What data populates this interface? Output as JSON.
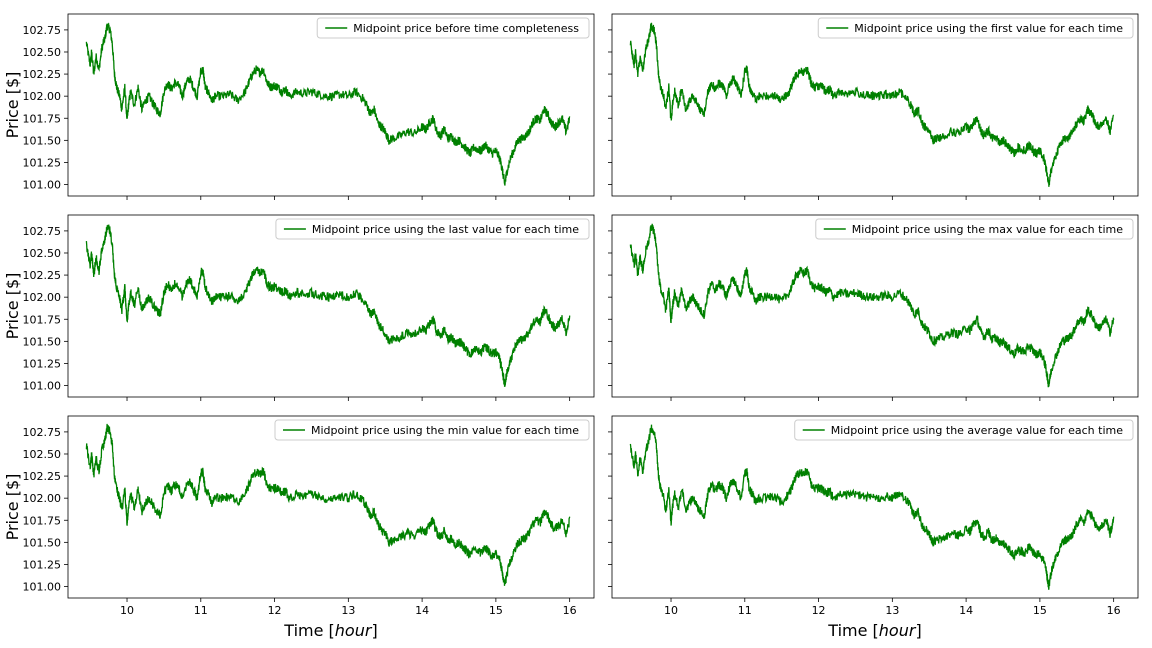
{
  "figure": {
    "ylabel": "Price [$]",
    "xlabel_prefix": "Time [",
    "xlabel_italic": "hour",
    "xlabel_suffix": "]",
    "line_color": "#008000"
  },
  "chart_data": [
    {
      "type": "line",
      "row": 0,
      "col": 0,
      "series": [
        {
          "name": "Midpoint price before time completeness"
        }
      ],
      "xlim": [
        9.2,
        16.33
      ],
      "ylim": [
        100.87,
        102.93
      ],
      "xticks": [
        10,
        11,
        12,
        13,
        14,
        15,
        16
      ],
      "yticks": [
        101.0,
        101.25,
        101.5,
        101.75,
        102.0,
        102.25,
        102.5,
        102.75
      ],
      "legend": "upper right"
    },
    {
      "type": "line",
      "row": 0,
      "col": 1,
      "series": [
        {
          "name": "Midpoint price using the first value for each time"
        }
      ],
      "xlim": [
        9.2,
        16.33
      ],
      "ylim": [
        100.87,
        102.93
      ],
      "xticks": [
        10,
        11,
        12,
        13,
        14,
        15,
        16
      ],
      "yticks": [
        101.0,
        101.25,
        101.5,
        101.75,
        102.0,
        102.25,
        102.5,
        102.75
      ],
      "legend": "upper right"
    },
    {
      "type": "line",
      "row": 1,
      "col": 0,
      "series": [
        {
          "name": "Midpoint price using the last value for each time"
        }
      ],
      "xlim": [
        9.2,
        16.33
      ],
      "ylim": [
        100.87,
        102.93
      ],
      "xticks": [
        10,
        11,
        12,
        13,
        14,
        15,
        16
      ],
      "yticks": [
        101.0,
        101.25,
        101.5,
        101.75,
        102.0,
        102.25,
        102.5,
        102.75
      ],
      "legend": "upper right"
    },
    {
      "type": "line",
      "row": 1,
      "col": 1,
      "series": [
        {
          "name": "Midpoint price using the max value for each time"
        }
      ],
      "xlim": [
        9.2,
        16.33
      ],
      "ylim": [
        100.87,
        102.93
      ],
      "xticks": [
        10,
        11,
        12,
        13,
        14,
        15,
        16
      ],
      "yticks": [
        101.0,
        101.25,
        101.5,
        101.75,
        102.0,
        102.25,
        102.5,
        102.75
      ],
      "legend": "upper right"
    },
    {
      "type": "line",
      "row": 2,
      "col": 0,
      "series": [
        {
          "name": "Midpoint price using the min value for each time"
        }
      ],
      "xlim": [
        9.2,
        16.33
      ],
      "ylim": [
        100.87,
        102.93
      ],
      "xticks": [
        10,
        11,
        12,
        13,
        14,
        15,
        16
      ],
      "yticks": [
        101.0,
        101.25,
        101.5,
        101.75,
        102.0,
        102.25,
        102.5,
        102.75
      ],
      "legend": "upper right"
    },
    {
      "type": "line",
      "row": 2,
      "col": 1,
      "series": [
        {
          "name": "Midpoint price using the average value for each time"
        }
      ],
      "xlim": [
        9.2,
        16.33
      ],
      "ylim": [
        100.87,
        102.93
      ],
      "xticks": [
        10,
        11,
        12,
        13,
        14,
        15,
        16
      ],
      "yticks": [
        101.0,
        101.25,
        101.5,
        101.75,
        102.0,
        102.25,
        102.5,
        102.75
      ],
      "legend": "upper right"
    }
  ],
  "price_series": {
    "x": [
      9.45,
      9.5,
      9.52,
      9.55,
      9.58,
      9.62,
      9.66,
      9.7,
      9.73,
      9.77,
      9.8,
      9.83,
      9.86,
      9.9,
      9.93,
      9.97,
      10.0,
      10.02,
      10.05,
      10.1,
      10.15,
      10.2,
      10.25,
      10.3,
      10.35,
      10.4,
      10.45,
      10.5,
      10.55,
      10.6,
      10.65,
      10.7,
      10.75,
      10.8,
      10.85,
      10.9,
      10.95,
      11.0,
      11.03,
      11.06,
      11.1,
      11.15,
      11.2,
      11.3,
      11.4,
      11.5,
      11.6,
      11.65,
      11.7,
      11.75,
      11.8,
      11.85,
      11.9,
      11.95,
      12.0,
      12.05,
      12.1,
      12.15,
      12.2,
      12.3,
      12.4,
      12.5,
      12.6,
      12.7,
      12.8,
      12.9,
      13.0,
      13.1,
      13.2,
      13.25,
      13.3,
      13.35,
      13.4,
      13.45,
      13.5,
      13.55,
      13.6,
      13.7,
      13.8,
      13.9,
      14.0,
      14.05,
      14.1,
      14.15,
      14.2,
      14.25,
      14.3,
      14.35,
      14.4,
      14.45,
      14.5,
      14.55,
      14.6,
      14.65,
      14.7,
      14.75,
      14.8,
      14.85,
      14.9,
      14.95,
      15.0,
      15.05,
      15.08,
      15.1,
      15.12,
      15.15,
      15.2,
      15.25,
      15.3,
      15.35,
      15.4,
      15.45,
      15.5,
      15.55,
      15.6,
      15.65,
      15.7,
      15.75,
      15.8,
      15.85,
      15.9,
      15.95,
      16.0
    ],
    "y": [
      102.6,
      102.35,
      102.5,
      102.25,
      102.45,
      102.3,
      102.55,
      102.65,
      102.8,
      102.75,
      102.6,
      102.25,
      102.1,
      102.0,
      101.85,
      102.1,
      101.72,
      101.9,
      102.05,
      101.9,
      102.1,
      101.85,
      101.95,
      102.0,
      101.92,
      101.85,
      101.8,
      102.05,
      102.15,
      102.08,
      102.15,
      102.12,
      102.0,
      102.15,
      102.2,
      102.1,
      102.0,
      102.28,
      102.3,
      102.1,
      102.05,
      101.95,
      102.0,
      102.0,
      102.02,
      101.95,
      102.05,
      102.15,
      102.25,
      102.3,
      102.27,
      102.3,
      102.15,
      102.1,
      102.12,
      102.1,
      102.05,
      102.08,
      102.0,
      102.05,
      102.03,
      102.05,
      102.02,
      102.0,
      102.0,
      102.02,
      102.0,
      102.05,
      101.97,
      101.9,
      101.8,
      101.85,
      101.7,
      101.65,
      101.6,
      101.5,
      101.52,
      101.55,
      101.6,
      101.58,
      101.65,
      101.62,
      101.7,
      101.75,
      101.6,
      101.55,
      101.63,
      101.52,
      101.55,
      101.48,
      101.5,
      101.45,
      101.4,
      101.35,
      101.42,
      101.4,
      101.38,
      101.45,
      101.4,
      101.35,
      101.38,
      101.3,
      101.2,
      101.1,
      101.0,
      101.15,
      101.3,
      101.4,
      101.5,
      101.52,
      101.55,
      101.6,
      101.7,
      101.75,
      101.72,
      101.85,
      101.8,
      101.7,
      101.65,
      101.7,
      101.75,
      101.6,
      101.75
    ],
    "noise_amplitude": 0.05
  }
}
